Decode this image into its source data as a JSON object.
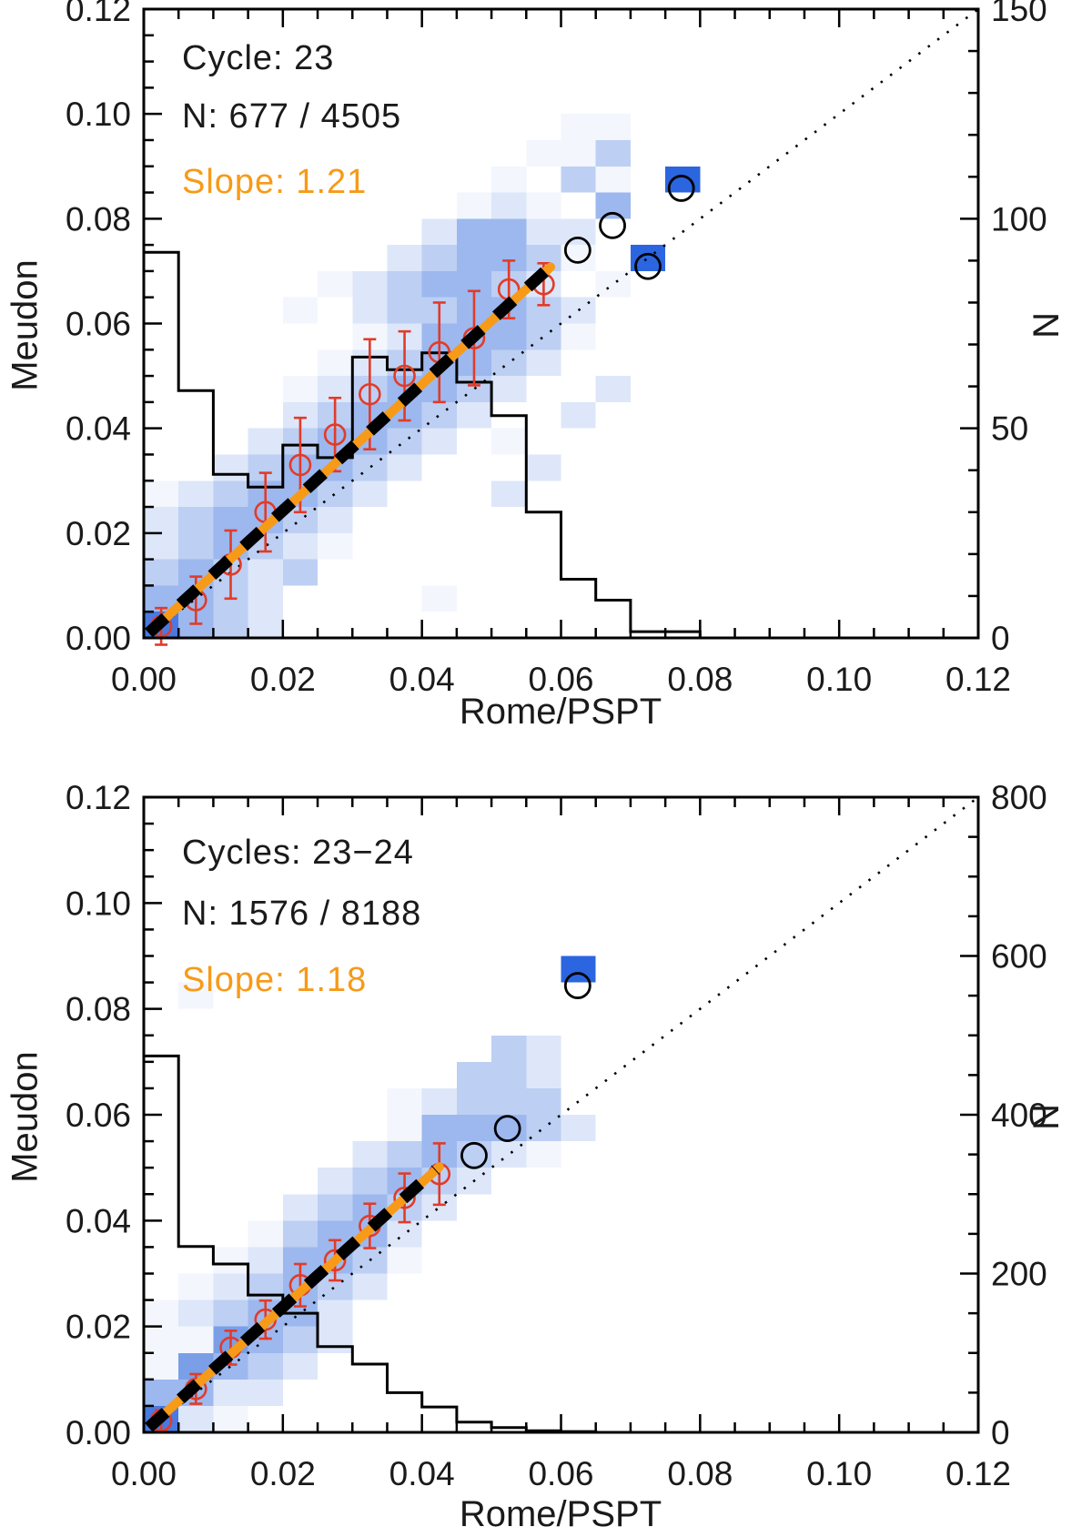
{
  "colors": {
    "fit_orange": "#f79a18",
    "median_red": "#e23b28",
    "line_black": "#000000",
    "heat_palette": {
      "1": "#f3f6fd",
      "2": "#dde7f9",
      "3": "#bdcff3",
      "4": "#9cb8ee",
      "5": "#7b9fe7",
      "6": "#4a7ae0",
      "7": "#2b66e0"
    }
  },
  "chart_data": {
    "type": "heatmap",
    "description": "Two-panel comparison of facular area indices: Meudon vs Rome/PSPT. Blue 2D-histogram cells (0.005 bins), black outline histogram of Rome/PSPT counts (right N axis), dotted 1:1 line, orange least-squares fit overlaid with black dashed robust fit, red binned medians with error bars, open black circles for outlier bins.",
    "panels": [
      {
        "name": "cycle-23",
        "annotations": {
          "cycle": "Cycle: 23",
          "n": "N: 677 / 4505",
          "slope": "Slope: 1.21"
        },
        "x_axis": {
          "label": "Rome/PSPT",
          "min": 0,
          "max": 0.12,
          "major_ticks": [
            "0.00",
            "0.02",
            "0.04",
            "0.06",
            "0.08",
            "0.10",
            "0.12"
          ],
          "minor_step": 0.005
        },
        "y_axis": {
          "label": "Meudon",
          "min": 0,
          "max": 0.12,
          "major_ticks": [
            "0.00",
            "0.02",
            "0.04",
            "0.06",
            "0.08",
            "0.10",
            "0.12"
          ],
          "minor_step": 0.005
        },
        "n_axis": {
          "label": "N",
          "min": 0,
          "max": 150,
          "major_ticks": [
            "0",
            "50",
            "100",
            "150"
          ],
          "minor_step": 10
        },
        "bin_width": 0.005,
        "heat_cells": [
          [
            0,
            0,
            6
          ],
          [
            1,
            0,
            4
          ],
          [
            2,
            0,
            3
          ],
          [
            3,
            0,
            2
          ],
          [
            0,
            1,
            4
          ],
          [
            1,
            1,
            4
          ],
          [
            2,
            1,
            3
          ],
          [
            3,
            1,
            2
          ],
          [
            8,
            1,
            1
          ],
          [
            0,
            2,
            3
          ],
          [
            1,
            2,
            4
          ],
          [
            2,
            2,
            3
          ],
          [
            3,
            2,
            2
          ],
          [
            4,
            2,
            3
          ],
          [
            0,
            3,
            2
          ],
          [
            1,
            3,
            3
          ],
          [
            2,
            3,
            4
          ],
          [
            3,
            3,
            3
          ],
          [
            4,
            3,
            2
          ],
          [
            5,
            3,
            1
          ],
          [
            0,
            4,
            2
          ],
          [
            1,
            4,
            3
          ],
          [
            2,
            4,
            4
          ],
          [
            3,
            4,
            4
          ],
          [
            4,
            4,
            3
          ],
          [
            5,
            4,
            2
          ],
          [
            0,
            5,
            1
          ],
          [
            1,
            5,
            2
          ],
          [
            2,
            5,
            3
          ],
          [
            3,
            5,
            4
          ],
          [
            4,
            5,
            4
          ],
          [
            5,
            5,
            3
          ],
          [
            6,
            5,
            2
          ],
          [
            10,
            5,
            2
          ],
          [
            2,
            6,
            2
          ],
          [
            3,
            6,
            3
          ],
          [
            4,
            6,
            4
          ],
          [
            5,
            6,
            4
          ],
          [
            6,
            6,
            3
          ],
          [
            7,
            6,
            2
          ],
          [
            11,
            6,
            2
          ],
          [
            3,
            7,
            2
          ],
          [
            4,
            7,
            3
          ],
          [
            5,
            7,
            4
          ],
          [
            6,
            7,
            4
          ],
          [
            7,
            7,
            3
          ],
          [
            8,
            7,
            2
          ],
          [
            10,
            7,
            1
          ],
          [
            4,
            8,
            2
          ],
          [
            5,
            8,
            3
          ],
          [
            6,
            8,
            4
          ],
          [
            7,
            8,
            4
          ],
          [
            8,
            8,
            3
          ],
          [
            9,
            8,
            2
          ],
          [
            12,
            8,
            2
          ],
          [
            4,
            9,
            1
          ],
          [
            5,
            9,
            2
          ],
          [
            6,
            9,
            3
          ],
          [
            7,
            9,
            4
          ],
          [
            8,
            9,
            4
          ],
          [
            9,
            9,
            3
          ],
          [
            10,
            9,
            2
          ],
          [
            13,
            9,
            2
          ],
          [
            5,
            10,
            1
          ],
          [
            6,
            10,
            2
          ],
          [
            7,
            10,
            3
          ],
          [
            8,
            10,
            4
          ],
          [
            9,
            10,
            4
          ],
          [
            10,
            10,
            3
          ],
          [
            11,
            10,
            2
          ],
          [
            6,
            11,
            1
          ],
          [
            7,
            11,
            2
          ],
          [
            8,
            11,
            4
          ],
          [
            9,
            11,
            4
          ],
          [
            10,
            11,
            4
          ],
          [
            11,
            11,
            3
          ],
          [
            12,
            11,
            1
          ],
          [
            4,
            12,
            1
          ],
          [
            6,
            12,
            2
          ],
          [
            7,
            12,
            3
          ],
          [
            8,
            12,
            3
          ],
          [
            9,
            12,
            4
          ],
          [
            10,
            12,
            4
          ],
          [
            11,
            12,
            3
          ],
          [
            12,
            12,
            2
          ],
          [
            5,
            13,
            1
          ],
          [
            6,
            13,
            2
          ],
          [
            7,
            13,
            3
          ],
          [
            8,
            13,
            4
          ],
          [
            9,
            13,
            4
          ],
          [
            10,
            13,
            3
          ],
          [
            11,
            13,
            2
          ],
          [
            13,
            13,
            1
          ],
          [
            7,
            14,
            2
          ],
          [
            8,
            14,
            3
          ],
          [
            9,
            14,
            4
          ],
          [
            10,
            14,
            4
          ],
          [
            11,
            14,
            3
          ],
          [
            12,
            14,
            1
          ],
          [
            14,
            14,
            7
          ],
          [
            8,
            15,
            2
          ],
          [
            9,
            15,
            4
          ],
          [
            10,
            15,
            4
          ],
          [
            11,
            15,
            2
          ],
          [
            12,
            15,
            2
          ],
          [
            9,
            16,
            1
          ],
          [
            10,
            16,
            2
          ],
          [
            11,
            16,
            1
          ],
          [
            13,
            16,
            4
          ],
          [
            10,
            17,
            1
          ],
          [
            12,
            17,
            3
          ],
          [
            13,
            17,
            1
          ],
          [
            15,
            17,
            7
          ],
          [
            11,
            18,
            1
          ],
          [
            12,
            18,
            1
          ],
          [
            13,
            18,
            3
          ],
          [
            12,
            19,
            1
          ],
          [
            13,
            19,
            1
          ]
        ],
        "histogram_counts": [
          92,
          59,
          39,
          36,
          46,
          43,
          67,
          64,
          68,
          61,
          53,
          30,
          14,
          9,
          1.5,
          1.5
        ],
        "identity_line": true,
        "fit_line": {
          "slope": 1.21,
          "x_start": 0.0015,
          "x_end": 0.0585
        },
        "medians": {
          "x": [
            0.0025,
            0.0075,
            0.0125,
            0.0175,
            0.0225,
            0.0275,
            0.0325,
            0.0375,
            0.0425,
            0.0475,
            0.0525,
            0.0575
          ],
          "y": [
            0.0022,
            0.0072,
            0.014,
            0.024,
            0.033,
            0.0388,
            0.0465,
            0.05,
            0.0545,
            0.0572,
            0.0665,
            0.0675
          ],
          "yerr": [
            0.0035,
            0.0045,
            0.0065,
            0.0075,
            0.009,
            0.007,
            0.0105,
            0.0085,
            0.0095,
            0.009,
            0.0055,
            0.004
          ]
        },
        "outlier_circles": [
          [
            0.0624,
            0.074
          ],
          [
            0.0674,
            0.0787
          ],
          [
            0.0725,
            0.0709
          ],
          [
            0.0773,
            0.0858
          ]
        ]
      },
      {
        "name": "cycles-23-24",
        "annotations": {
          "cycle": "Cycles: 23−24",
          "n": "N: 1576 / 8188",
          "slope": "Slope: 1.18"
        },
        "x_axis": {
          "label": "Rome/PSPT",
          "min": 0,
          "max": 0.12,
          "major_ticks": [
            "0.00",
            "0.02",
            "0.04",
            "0.06",
            "0.08",
            "0.10",
            "0.12"
          ],
          "minor_step": 0.005
        },
        "y_axis": {
          "label": "Meudon",
          "min": 0,
          "max": 0.12,
          "major_ticks": [
            "0.00",
            "0.02",
            "0.04",
            "0.06",
            "0.08",
            "0.10",
            "0.12"
          ],
          "minor_step": 0.005
        },
        "n_axis": {
          "label": "N",
          "min": 0,
          "max": 800,
          "major_ticks": [
            "0",
            "200",
            "400",
            "600",
            "800"
          ],
          "minor_step": 50
        },
        "bin_width": 0.005,
        "heat_cells": [
          [
            0,
            0,
            6
          ],
          [
            1,
            0,
            2
          ],
          [
            2,
            0,
            1
          ],
          [
            0,
            1,
            4
          ],
          [
            1,
            1,
            4
          ],
          [
            2,
            1,
            2
          ],
          [
            3,
            1,
            2
          ],
          [
            0,
            2,
            1
          ],
          [
            1,
            2,
            5
          ],
          [
            2,
            2,
            4
          ],
          [
            3,
            2,
            3
          ],
          [
            4,
            2,
            2
          ],
          [
            0,
            3,
            1
          ],
          [
            1,
            3,
            1
          ],
          [
            2,
            3,
            5
          ],
          [
            3,
            3,
            4
          ],
          [
            4,
            3,
            3
          ],
          [
            5,
            3,
            2
          ],
          [
            0,
            4,
            1
          ],
          [
            1,
            4,
            2
          ],
          [
            2,
            4,
            3
          ],
          [
            3,
            4,
            4
          ],
          [
            4,
            4,
            4
          ],
          [
            5,
            4,
            2
          ],
          [
            1,
            5,
            1
          ],
          [
            2,
            5,
            2
          ],
          [
            3,
            5,
            3
          ],
          [
            4,
            5,
            4
          ],
          [
            5,
            5,
            3
          ],
          [
            6,
            5,
            2
          ],
          [
            2,
            6,
            1
          ],
          [
            3,
            6,
            2
          ],
          [
            4,
            6,
            4
          ],
          [
            5,
            6,
            4
          ],
          [
            6,
            6,
            3
          ],
          [
            7,
            6,
            1
          ],
          [
            3,
            7,
            1
          ],
          [
            4,
            7,
            3
          ],
          [
            5,
            7,
            4
          ],
          [
            6,
            7,
            4
          ],
          [
            7,
            7,
            2
          ],
          [
            4,
            8,
            2
          ],
          [
            5,
            8,
            3
          ],
          [
            6,
            8,
            4
          ],
          [
            7,
            8,
            3
          ],
          [
            8,
            8,
            2
          ],
          [
            5,
            9,
            2
          ],
          [
            6,
            9,
            3
          ],
          [
            7,
            9,
            4
          ],
          [
            8,
            9,
            3
          ],
          [
            9,
            9,
            2
          ],
          [
            6,
            10,
            2
          ],
          [
            7,
            10,
            3
          ],
          [
            8,
            10,
            4
          ],
          [
            9,
            10,
            3
          ],
          [
            10,
            10,
            2
          ],
          [
            11,
            10,
            1
          ],
          [
            7,
            11,
            1
          ],
          [
            8,
            11,
            4
          ],
          [
            9,
            11,
            4
          ],
          [
            10,
            11,
            4
          ],
          [
            11,
            11,
            3
          ],
          [
            12,
            11,
            2
          ],
          [
            7,
            12,
            1
          ],
          [
            8,
            12,
            2
          ],
          [
            9,
            12,
            3
          ],
          [
            10,
            12,
            3
          ],
          [
            11,
            12,
            3
          ],
          [
            9,
            13,
            3
          ],
          [
            10,
            13,
            3
          ],
          [
            11,
            13,
            2
          ],
          [
            10,
            14,
            3
          ],
          [
            11,
            14,
            2
          ],
          [
            1,
            16,
            1
          ],
          [
            12,
            17,
            7
          ]
        ],
        "histogram_counts": [
          474,
          234,
          212,
          173,
          150,
          108,
          86,
          50,
          32,
          13,
          6,
          2,
          1
        ],
        "identity_line": true,
        "fit_line": {
          "slope": 1.18,
          "x_start": 0.0015,
          "x_end": 0.0425
        },
        "medians": {
          "x": [
            0.0025,
            0.0075,
            0.0125,
            0.0175,
            0.0225,
            0.0275,
            0.0325,
            0.0375,
            0.0425
          ],
          "y": [
            0.0022,
            0.0082,
            0.016,
            0.0213,
            0.0278,
            0.0325,
            0.039,
            0.0443,
            0.0488
          ],
          "yerr": [
            0.002,
            0.0028,
            0.0032,
            0.0036,
            0.004,
            0.0038,
            0.0042,
            0.0046,
            0.0058
          ]
        },
        "outlier_circles": [
          [
            0.0475,
            0.0523
          ],
          [
            0.0523,
            0.0574
          ],
          [
            0.0624,
            0.0844
          ]
        ]
      }
    ]
  }
}
